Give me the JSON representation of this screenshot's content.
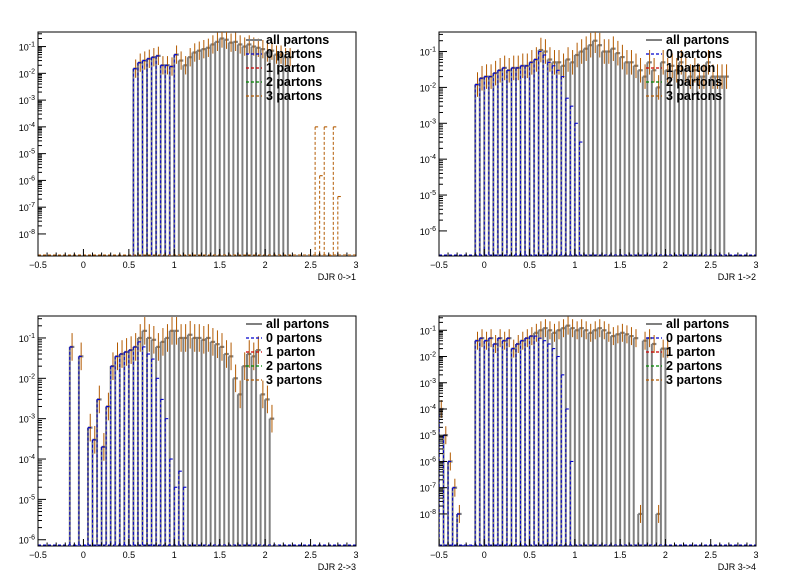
{
  "chart_data": [
    {
      "type": "histogram",
      "xlabel": "DJR 0->1",
      "ylabel": "",
      "log_y": true,
      "xlim": [
        -0.5,
        3
      ],
      "ylim": [
        1.5e-09,
        0.35
      ],
      "y_ticks": [
        1e-08,
        1e-07,
        1e-06,
        1e-05,
        0.0001,
        0.001,
        0.01,
        0.1
      ],
      "y_tick_labels": [
        "10^-8",
        "10^-7",
        "10^-6",
        "10^-5",
        "10^-4",
        "10^-3",
        "10^-2",
        "10^-1"
      ],
      "x_ticks": [
        -0.5,
        0,
        0.5,
        1,
        1.5,
        2,
        2.5,
        3
      ],
      "x_tick_labels": [
        "−0.5",
        "0",
        "0.5",
        "1",
        "1.5",
        "2",
        "2.5",
        "3"
      ],
      "legend": [
        "all partons",
        "0 partons",
        "1 parton",
        "2 partons",
        "3 partons"
      ],
      "bin_width": 0.05,
      "series": [
        {
          "name": "all partons",
          "x_start": 0.55,
          "values": [
            0.015,
            0.025,
            0.03,
            0.035,
            0.04,
            0.045,
            0.02,
            0.02,
            0.018,
            0.05,
            0.03,
            0.02,
            0.04,
            0.06,
            0.07,
            0.08,
            0.09,
            0.12,
            0.15,
            0.2,
            0.18,
            0.14,
            0.15,
            0.12,
            0.1,
            0.12,
            0.1,
            0.09,
            0.08,
            0.06,
            0.07,
            0.05,
            0.05,
            0.04,
            0.04,
            0.0,
            0.0,
            0.0,
            0.0,
            0.0,
            0.0,
            0.0,
            0.0,
            0.0,
            0.0,
            0.0,
            0.0,
            0.0,
            0.0,
            0.0
          ]
        },
        {
          "name": "0 partons",
          "x_start": 0.55,
          "values": [
            0.015,
            0.025,
            0.03,
            0.035,
            0.04,
            0.045,
            0.02,
            0.02,
            0.018,
            0.05
          ]
        },
        {
          "name": "3 partons",
          "x_start": 2.55,
          "values": [
            0.0001,
            1.5e-06,
            0.0001,
            0,
            0.0001,
            2.5e-07
          ]
        }
      ]
    },
    {
      "type": "histogram",
      "xlabel": "DJR 1->2",
      "ylabel": "",
      "log_y": true,
      "xlim": [
        -0.5,
        3
      ],
      "ylim": [
        2e-07,
        0.35
      ],
      "y_ticks": [
        1e-06,
        1e-05,
        0.0001,
        0.001,
        0.01,
        0.1
      ],
      "y_tick_labels": [
        "10^-6",
        "10^-5",
        "10^-4",
        "10^-3",
        "10^-2",
        "10^-1"
      ],
      "x_ticks": [
        -0.5,
        0,
        0.5,
        1,
        1.5,
        2,
        2.5,
        3
      ],
      "x_tick_labels": [
        "−0.5",
        "0",
        "0.5",
        "1",
        "1.5",
        "2",
        "2.5",
        "3"
      ],
      "legend": [
        "all partons",
        "0 partons",
        "1 parton",
        "2 partons",
        "3 partons"
      ],
      "bin_width": 0.05,
      "series": [
        {
          "name": "all partons",
          "x_start": -0.1,
          "values": [
            0.012,
            0.018,
            0.02,
            0.02,
            0.025,
            0.03,
            0.035,
            0.03,
            0.035,
            0.035,
            0.04,
            0.04,
            0.05,
            0.06,
            0.11,
            0.1,
            0.06,
            0.05,
            0.05,
            0.04,
            0.06,
            0.05,
            0.08,
            0.1,
            0.12,
            0.15,
            0.2,
            0.15,
            0.1,
            0.1,
            0.12,
            0.09,
            0.07,
            0.05,
            0.05,
            0.04,
            0.03,
            0.02,
            0.05,
            0.03,
            0.01,
            0.05,
            0.03,
            0.04,
            0.03,
            0.05,
            0.03,
            0.02,
            0.03,
            0.02,
            0.02,
            0.05,
            0.02,
            0.02,
            0.02,
            0.02
          ]
        },
        {
          "name": "0 partons",
          "x_start": -0.1,
          "values": [
            0.012,
            0.018,
            0.02,
            0.02,
            0.025,
            0.03,
            0.035,
            0.03,
            0.035,
            0.035,
            0.04,
            0.04,
            0.05,
            0.06,
            0.1,
            0.08,
            0.05,
            0.04,
            0.03,
            0.02,
            0.005,
            0.003,
            0.001,
            0.0003
          ]
        }
      ]
    },
    {
      "type": "histogram",
      "xlabel": "DJR 2->3",
      "ylabel": "",
      "log_y": true,
      "xlim": [
        -0.5,
        3
      ],
      "ylim": [
        7e-07,
        0.35
      ],
      "y_ticks": [
        1e-06,
        1e-05,
        0.0001,
        0.001,
        0.01,
        0.1
      ],
      "y_tick_labels": [
        "10^-6",
        "10^-5",
        "10^-4",
        "10^-3",
        "10^-2",
        "10^-1"
      ],
      "x_ticks": [
        -0.5,
        0,
        0.5,
        1,
        1.5,
        2,
        2.5,
        3
      ],
      "x_tick_labels": [
        "−0.5",
        "0",
        "0.5",
        "1",
        "1.5",
        "2",
        "2.5",
        "3"
      ],
      "legend": [
        "all partons",
        "0 partons",
        "1 parton",
        "2 partons",
        "3 partons"
      ],
      "bin_width": 0.05,
      "series": [
        {
          "name": "all partons",
          "x_start": -0.15,
          "values": [
            0.06,
            0.0,
            0.035,
            0.0,
            0.0006,
            0.0003,
            0.003,
            0.0002,
            0.002,
            0.02,
            0.035,
            0.04,
            0.045,
            0.05,
            0.06,
            0.1,
            0.15,
            0.1,
            0.09,
            0.06,
            0.08,
            0.1,
            0.15,
            0.15,
            0.1,
            0.1,
            0.12,
            0.1,
            0.1,
            0.09,
            0.1,
            0.08,
            0.07,
            0.06,
            0.04,
            0.035,
            0.01,
            0.004,
            0.02,
            0.04,
            0.035,
            0.05,
            0.004,
            0.003,
            0.001,
            0.0
          ]
        },
        {
          "name": "0 partons",
          "x_start": -0.15,
          "values": [
            0.06,
            0.0,
            0.035,
            0.0,
            0.0006,
            0.0003,
            0.003,
            0.0002,
            0.002,
            0.02,
            0.035,
            0.04,
            0.045,
            0.05,
            0.06,
            0.08,
            0.06,
            0.04,
            0.03,
            0.01,
            0.003,
            0.001,
            0.0001,
            2e-05,
            5e-05,
            2e-05
          ]
        }
      ]
    },
    {
      "type": "histogram",
      "xlabel": "DJR 3->4",
      "ylabel": "",
      "log_y": true,
      "xlim": [
        -0.5,
        3
      ],
      "ylim": [
        6e-10,
        0.35
      ],
      "y_ticks": [
        1e-08,
        1e-07,
        1e-06,
        1e-05,
        0.0001,
        0.001,
        0.01,
        0.1
      ],
      "y_tick_labels": [
        "10^-8",
        "10^-7",
        "10^-6",
        "10^-5",
        "10^-4",
        "10^-3",
        "10^-2",
        "10^-1"
      ],
      "x_ticks": [
        -0.5,
        0,
        0.5,
        1,
        1.5,
        2,
        2.5,
        3
      ],
      "x_tick_labels": [
        "−0.5",
        "0",
        "0.5",
        "1",
        "1.5",
        "2",
        "2.5",
        "3"
      ],
      "legend": [
        "all partons",
        "0 partons",
        "1 parton",
        "2 partons",
        "3 partons"
      ],
      "bin_width": 0.05,
      "series": [
        {
          "name": "all partons",
          "x_start": -0.5,
          "values": [
            0.0001,
            1e-05,
            1e-06,
            1e-07,
            1e-08,
            0,
            0,
            0,
            0.04,
            0.05,
            0.04,
            0.05,
            0.03,
            0.05,
            0.04,
            0.05,
            0.02,
            0.03,
            0.04,
            0.05,
            0.06,
            0.08,
            0.1,
            0.12,
            0.1,
            0.08,
            0.1,
            0.12,
            0.15,
            0.12,
            0.1,
            0.12,
            0.1,
            0.08,
            0.1,
            0.12,
            0.1,
            0.08,
            0.06,
            0.07,
            0.08,
            0.07,
            0.06,
            0.05,
            1e-08,
            0.04,
            0.05,
            0.03,
            1e-08,
            0.02,
            0.02
          ]
        },
        {
          "name": "0 partons",
          "x_start": -0.5,
          "values": [
            0.0001,
            1e-05,
            1e-06,
            1e-07,
            1e-08,
            0,
            0,
            0,
            0.04,
            0.05,
            0.04,
            0.05,
            0.03,
            0.05,
            0.04,
            0.05,
            0.02,
            0.03,
            0.04,
            0.05,
            0.06,
            0.06,
            0.05,
            0.04,
            0.03,
            0.02,
            0.01,
            0.002,
            0.0001,
            1e-06
          ]
        }
      ]
    }
  ],
  "colors": {
    "all": "#7f7f7f",
    "p0": "#0000cc",
    "p1": "#cc0000",
    "p2": "#008800",
    "p3": "#b35a00",
    "axis": "#000000"
  }
}
